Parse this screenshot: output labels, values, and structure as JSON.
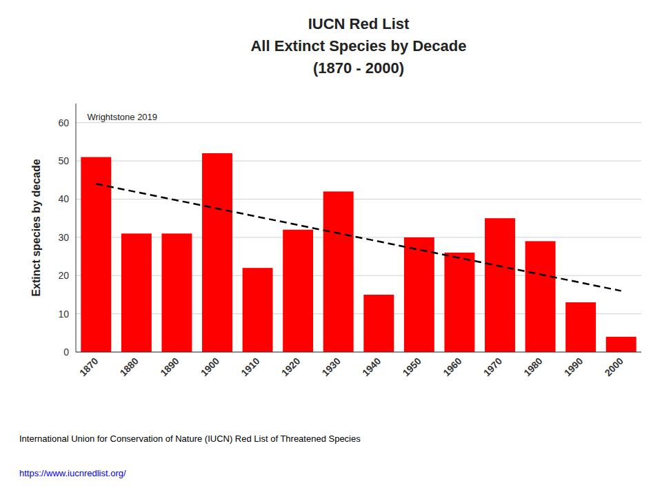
{
  "chart_data": {
    "type": "bar",
    "title": [
      "IUCN Red List",
      "All Extinct Species by Decade",
      "(1870 - 2000)"
    ],
    "y_label": "Extinct species by decade",
    "categories": [
      "1870",
      "1880",
      "1890",
      "1900",
      "1910",
      "1920",
      "1930",
      "1940",
      "1950",
      "1960",
      "1970",
      "1980",
      "1990",
      "2000"
    ],
    "values": [
      51,
      31,
      31,
      52,
      22,
      32,
      42,
      15,
      30,
      26,
      35,
      29,
      13,
      4
    ],
    "color": "#FF0000",
    "ylim": [
      0,
      65
    ],
    "yticks": [
      0,
      10,
      20,
      30,
      40,
      50,
      60
    ],
    "grid": true,
    "trend": {
      "values": [
        44,
        16
      ],
      "color": "#000000",
      "line_style": "dashed"
    },
    "annotations": [
      "Wrightstone 2019"
    ],
    "footnotes": [
      {
        "text": "International Union for Conservation of Nature (IUCN) Red List of Threatened Species",
        "color": "#000000"
      },
      {
        "text": "https://www.iucnredlist.org/",
        "color": "#0000EE"
      }
    ]
  }
}
